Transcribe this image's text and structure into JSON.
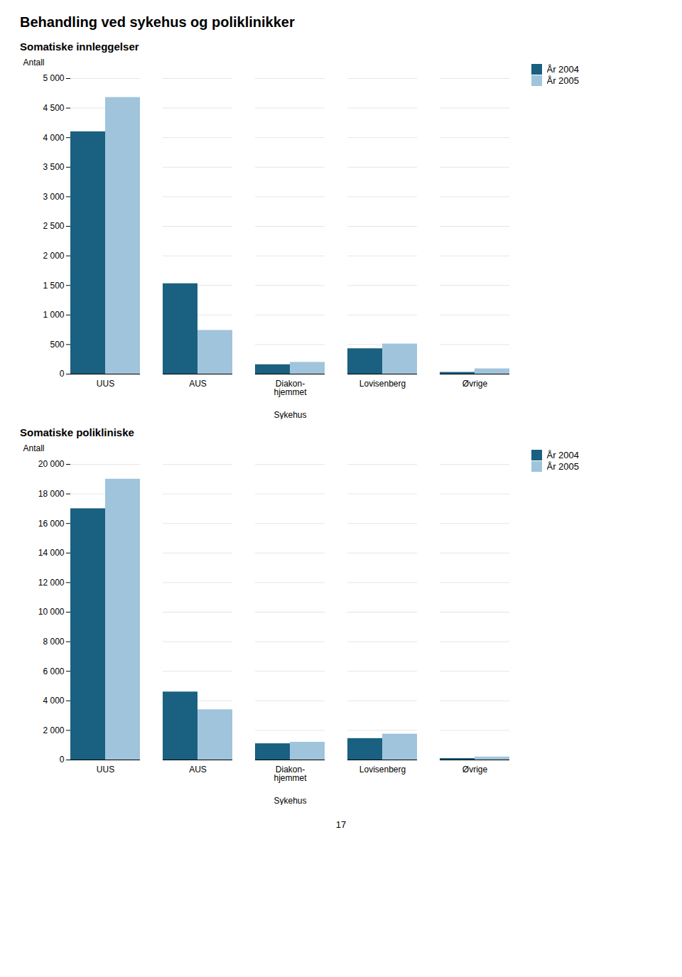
{
  "chart_data": [
    {
      "type": "bar",
      "title": "Behandling ved sykehus og poliklinikker",
      "subtitle": "Somatiske innleggelser",
      "categories": [
        "UUS",
        "AUS",
        "Diakon-\nhjemmet",
        "Lovisenberg",
        "Øvrige"
      ],
      "series": [
        {
          "name": "År 2004",
          "color": "#1a6080",
          "values": [
            4100,
            1530,
            160,
            430,
            30
          ]
        },
        {
          "name": "År 2005",
          "color": "#a0c4dc",
          "values": [
            4680,
            740,
            200,
            510,
            90
          ]
        }
      ],
      "xlabel": "Sykehus",
      "ylabel": "Antall",
      "ylim": [
        0,
        5000
      ],
      "yticks": [
        0,
        500,
        {
          "value": 1000,
          "label": "1 000"
        },
        {
          "value": 1500,
          "label": "1 500"
        },
        {
          "value": 2000,
          "label": "2 000"
        },
        {
          "value": 2500,
          "label": "2 500"
        },
        {
          "value": 3000,
          "label": "3 000"
        },
        {
          "value": 3500,
          "label": "3 500"
        },
        {
          "value": 4000,
          "label": "4 000"
        },
        {
          "value": 4500,
          "label": "4 500"
        },
        {
          "value": 5000,
          "label": "5 000"
        }
      ],
      "grid": true,
      "legend": "upper right"
    },
    {
      "type": "bar",
      "subtitle": "Somatiske polikliniske",
      "categories": [
        "UUS",
        "AUS",
        "Diakon-\nhjemmet",
        "Lovisenberg",
        "Øvrige"
      ],
      "series": [
        {
          "name": "År 2004",
          "color": "#1a6080",
          "values": [
            17000,
            4600,
            1100,
            1450,
            100
          ]
        },
        {
          "name": "År 2005",
          "color": "#a0c4dc",
          "values": [
            19000,
            3400,
            1200,
            1750,
            200
          ]
        }
      ],
      "xlabel": "Sykehus",
      "ylabel": "Antall",
      "ylim": [
        0,
        20000
      ],
      "yticks": [
        0,
        {
          "value": 2000,
          "label": "2 000"
        },
        {
          "value": 4000,
          "label": "4 000"
        },
        {
          "value": 6000,
          "label": "6 000"
        },
        {
          "value": 8000,
          "label": "8 000"
        },
        {
          "value": 10000,
          "label": "10 000"
        },
        {
          "value": 12000,
          "label": "12 000"
        },
        {
          "value": 14000,
          "label": "14 000"
        },
        {
          "value": 16000,
          "label": "16 000"
        },
        {
          "value": 18000,
          "label": "18 000"
        },
        {
          "value": 20000,
          "label": "20 000"
        }
      ],
      "grid": true,
      "legend": "upper right",
      "annotations": [
        "17"
      ]
    }
  ]
}
